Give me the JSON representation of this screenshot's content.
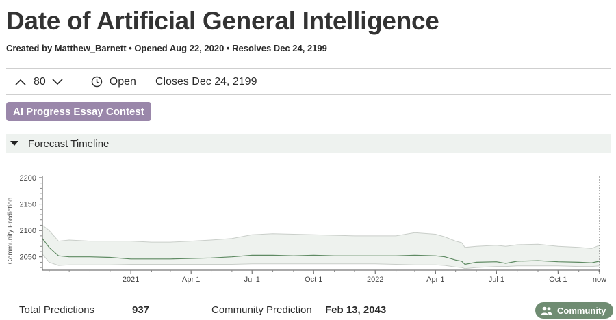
{
  "header": {
    "title": "Date of Artificial General Intelligence",
    "meta": "Created by Matthew_Barnett • Opened Aug 22, 2020 • Resolves Dec 24, 2199"
  },
  "vote_bar": {
    "count": "80",
    "status": "Open",
    "closes": "Closes Dec 24, 2199"
  },
  "tag": {
    "label": "AI Progress Essay Contest"
  },
  "section": {
    "label": "Forecast Timeline"
  },
  "icons": {
    "up": "chevron-up-icon",
    "down": "chevron-down-icon",
    "status": "clock-icon",
    "section": "caret-down-icon",
    "community": "people-icon"
  },
  "colors": {
    "accent_tag": "#9a87aa",
    "community": "#6f8c72",
    "band_fill": "#eef2ee",
    "median_line": "#5e8a62"
  },
  "chart_data": {
    "type": "area",
    "ylabel": "Community Prediction",
    "yticks": [
      "2200",
      "2150",
      "2100",
      "2050"
    ],
    "ylim": [
      2025,
      2200
    ],
    "xlim": [
      "2020-08-22",
      "2022-12-02"
    ],
    "xticks": [
      {
        "date": "2021-01-01",
        "label": "2021"
      },
      {
        "date": "2021-04-01",
        "label": "Apr 1"
      },
      {
        "date": "2021-07-01",
        "label": "Jul 1"
      },
      {
        "date": "2021-10-01",
        "label": "Oct 1"
      },
      {
        "date": "2022-01-01",
        "label": "2022"
      },
      {
        "date": "2022-04-01",
        "label": "Apr 1"
      },
      {
        "date": "2022-07-01",
        "label": "Jul 1"
      },
      {
        "date": "2022-10-01",
        "label": "Oct 1"
      },
      {
        "date": "2022-12-02",
        "label": "now"
      }
    ],
    "series": [
      {
        "x": [
          "2020-08-22",
          "2020-09-01",
          "2020-09-15",
          "2020-10-01",
          "2020-11-01",
          "2020-12-01",
          "2021-01-01",
          "2021-02-01",
          "2021-03-01",
          "2021-04-01",
          "2021-05-01",
          "2021-06-01",
          "2021-07-01",
          "2021-08-01",
          "2021-09-01",
          "2021-10-01",
          "2021-11-01",
          "2021-12-01",
          "2022-01-01",
          "2022-02-01",
          "2022-03-01",
          "2022-04-01",
          "2022-04-15",
          "2022-05-01",
          "2022-05-10",
          "2022-05-15",
          "2022-06-01",
          "2022-07-01",
          "2022-07-15",
          "2022-08-01",
          "2022-09-01",
          "2022-10-01",
          "2022-11-01",
          "2022-11-20",
          "2022-12-02"
        ],
        "upper": [
          2110,
          2100,
          2080,
          2082,
          2080,
          2080,
          2080,
          2078,
          2078,
          2080,
          2082,
          2085,
          2092,
          2094,
          2093,
          2092,
          2091,
          2090,
          2090,
          2090,
          2096,
          2093,
          2088,
          2080,
          2077,
          2068,
          2070,
          2072,
          2070,
          2073,
          2074,
          2070,
          2068,
          2066,
          2072
        ],
        "median": [
          2085,
          2068,
          2052,
          2050,
          2050,
          2049,
          2046,
          2046,
          2046,
          2047,
          2048,
          2050,
          2053,
          2053,
          2052,
          2053,
          2052,
          2052,
          2052,
          2052,
          2053,
          2052,
          2050,
          2044,
          2042,
          2036,
          2040,
          2041,
          2038,
          2042,
          2043,
          2041,
          2040,
          2039,
          2042
        ],
        "lower": [
          2055,
          2040,
          2034,
          2035,
          2035,
          2035,
          2036,
          2036,
          2036,
          2036,
          2036,
          2036,
          2037,
          2037,
          2037,
          2037,
          2037,
          2037,
          2037,
          2036,
          2035,
          2035,
          2034,
          2031,
          2030,
          2028,
          2030,
          2032,
          2032,
          2033,
          2033,
          2033,
          2032,
          2032,
          2033
        ]
      }
    ],
    "grid": false
  },
  "stats": {
    "total_label": "Total Predictions",
    "total_value": "937",
    "community_label": "Community Prediction",
    "community_value": "Feb 13, 2043",
    "community_button": "Community"
  }
}
